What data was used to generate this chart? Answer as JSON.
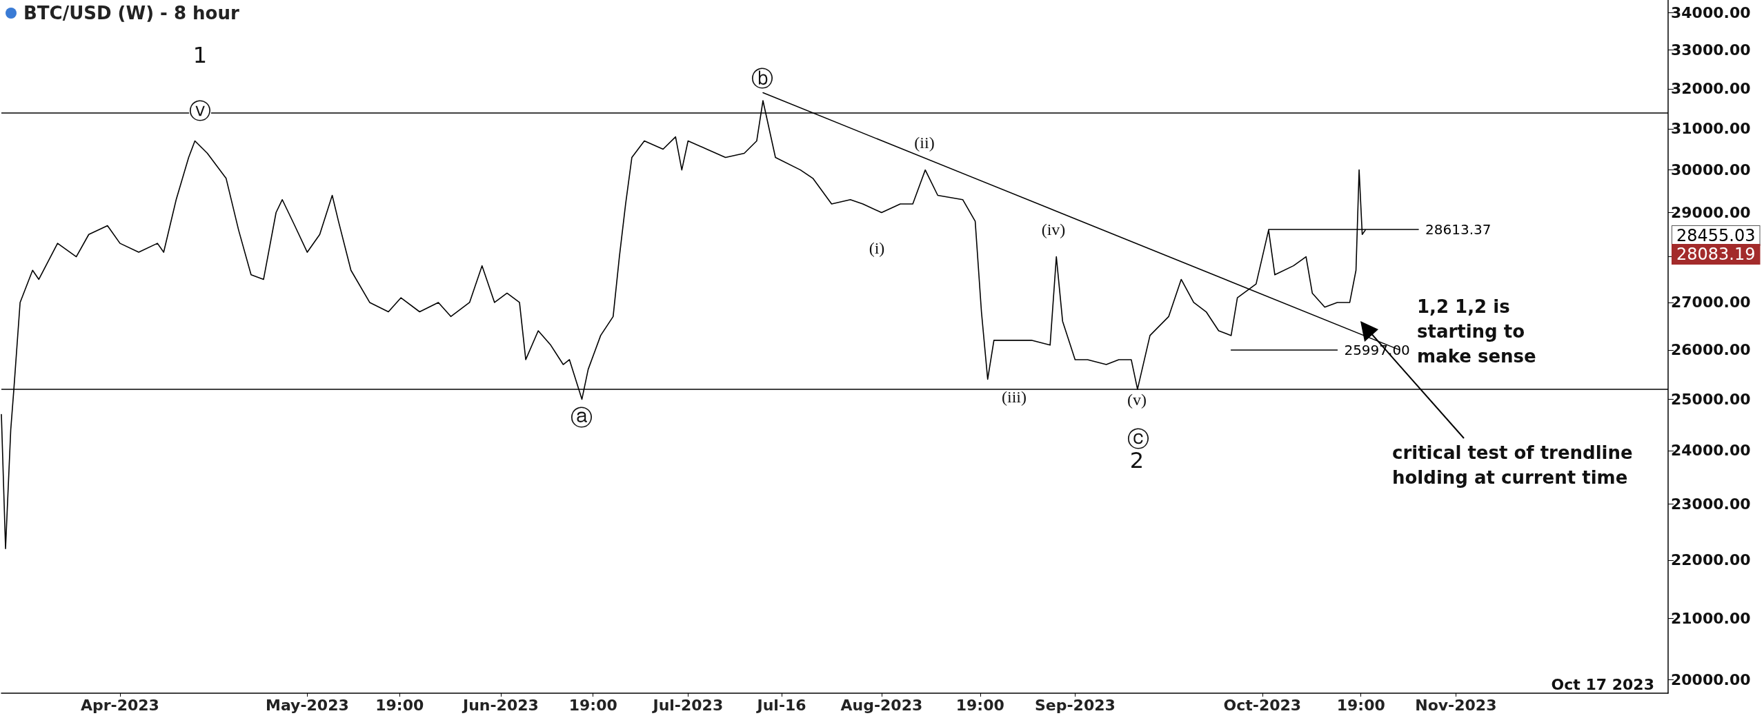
{
  "chart_data": {
    "type": "line",
    "title": "BTC/USD (W) - 8 hour",
    "log": "y",
    "grid": false,
    "marker": "none",
    "xlim": [
      "2023-03-13",
      "2023-12-05"
    ],
    "ylim": [
      19790,
      34340
    ],
    "xticks": [
      {
        "value": "2023-04-01",
        "label": "Apr-2023"
      },
      {
        "value": "2023-05-01",
        "label": "May-2023"
      },
      {
        "value": "2023-05-15T19:00",
        "label": "19:00"
      },
      {
        "value": "2023-06-01",
        "label": "Jun-2023"
      },
      {
        "value": "2023-06-15T19:00",
        "label": "19:00"
      },
      {
        "value": "2023-07-01",
        "label": "Jul-2023"
      },
      {
        "value": "2023-07-16",
        "label": "Jul-16"
      },
      {
        "value": "2023-08-01",
        "label": "Aug-2023"
      },
      {
        "value": "2023-08-16T19:00",
        "label": "19:00"
      },
      {
        "value": "2023-09-01",
        "label": "Sep-2023"
      },
      {
        "value": "2023-10-01",
        "label": "Oct-2023"
      },
      {
        "value": "2023-10-16T19:00",
        "label": "19:00"
      },
      {
        "value": "2023-11-01",
        "label": "Nov-2023"
      }
    ],
    "yticks": [
      {
        "value": 20000,
        "label": "20000.00"
      },
      {
        "value": 21000,
        "label": "21000.00"
      },
      {
        "value": 22000,
        "label": "22000.00"
      },
      {
        "value": 23000,
        "label": "23000.00"
      },
      {
        "value": 24000,
        "label": "24000.00"
      },
      {
        "value": 25000,
        "label": "25000.00"
      },
      {
        "value": 26000,
        "label": "26000.00"
      },
      {
        "value": 27000,
        "label": "27000.00"
      },
      {
        "value": 28000,
        "label": null
      },
      {
        "value": 29000,
        "label": "29000.00"
      },
      {
        "value": 30000,
        "label": "30000.00"
      },
      {
        "value": 31000,
        "label": "31000.00"
      },
      {
        "value": 32000,
        "label": "32000.00"
      },
      {
        "value": 33000,
        "label": "33000.00"
      },
      {
        "value": 34000,
        "label": "34000.00"
      }
    ],
    "ref_lines": [
      {
        "axis": "y",
        "value": 31400,
        "color": "#000000"
      },
      {
        "axis": "y",
        "value": 25200,
        "color": "#000000"
      }
    ],
    "series": [
      {
        "color": "#000000",
        "x": [
          "2023-03-13T00:00",
          "2023-03-13T16:00",
          "2023-03-14T12:00",
          "2023-03-15",
          "2023-03-16",
          "2023-03-18",
          "2023-03-19",
          "2023-03-22",
          "2023-03-25",
          "2023-03-27",
          "2023-03-30",
          "2023-04-01",
          "2023-04-04",
          "2023-04-07",
          "2023-04-08",
          "2023-04-10",
          "2023-04-12",
          "2023-04-13",
          "2023-04-15",
          "2023-04-18",
          "2023-04-20",
          "2023-04-22",
          "2023-04-24",
          "2023-04-26",
          "2023-04-27",
          "2023-04-29",
          "2023-05-01",
          "2023-05-03",
          "2023-05-05",
          "2023-05-06",
          "2023-05-08",
          "2023-05-11",
          "2023-05-14",
          "2023-05-16",
          "2023-05-19",
          "2023-05-22",
          "2023-05-24",
          "2023-05-27",
          "2023-05-29",
          "2023-05-31",
          "2023-06-02",
          "2023-06-04",
          "2023-06-05",
          "2023-06-07",
          "2023-06-09",
          "2023-06-11",
          "2023-06-12",
          "2023-06-14",
          "2023-06-15",
          "2023-06-17",
          "2023-06-19",
          "2023-06-20",
          "2023-06-21",
          "2023-06-22",
          "2023-06-24",
          "2023-06-27",
          "2023-06-29",
          "2023-06-30",
          "2023-07-01",
          "2023-07-04",
          "2023-07-07",
          "2023-07-10",
          "2023-07-12",
          "2023-07-13",
          "2023-07-15",
          "2023-07-19",
          "2023-07-21",
          "2023-07-24",
          "2023-07-27",
          "2023-07-29",
          "2023-08-01",
          "2023-08-04",
          "2023-08-06",
          "2023-08-08",
          "2023-08-10",
          "2023-08-14",
          "2023-08-16",
          "2023-08-17",
          "2023-08-18",
          "2023-08-19",
          "2023-08-22",
          "2023-08-25",
          "2023-08-28",
          "2023-08-29",
          "2023-08-30",
          "2023-09-01",
          "2023-09-03",
          "2023-09-06",
          "2023-09-08",
          "2023-09-10",
          "2023-09-11",
          "2023-09-13",
          "2023-09-16",
          "2023-09-18",
          "2023-09-20",
          "2023-09-22",
          "2023-09-24",
          "2023-09-26",
          "2023-09-27",
          "2023-09-30",
          "2023-10-02",
          "2023-10-03",
          "2023-10-06",
          "2023-10-08",
          "2023-10-09",
          "2023-10-11",
          "2023-10-13",
          "2023-10-15",
          "2023-10-16",
          "2023-10-16T12:00",
          "2023-10-17",
          "2023-10-17T12:00"
        ],
        "values": [
          24700,
          22200,
          24400,
          25200,
          27000,
          27700,
          27500,
          28300,
          28000,
          28500,
          28700,
          28300,
          28100,
          28300,
          28100,
          29300,
          30300,
          30700,
          30400,
          29800,
          28600,
          27600,
          27500,
          29000,
          29300,
          28700,
          28100,
          28500,
          29400,
          28800,
          27700,
          27000,
          26800,
          27100,
          26800,
          27000,
          26700,
          27000,
          27800,
          27000,
          27200,
          27000,
          25800,
          26400,
          26100,
          25700,
          25800,
          25000,
          25600,
          26300,
          26700,
          28000,
          29200,
          30300,
          30700,
          30500,
          30800,
          30000,
          30700,
          30500,
          30300,
          30400,
          30700,
          31700,
          30300,
          30000,
          29800,
          29200,
          29300,
          29200,
          29000,
          29200,
          29200,
          30000,
          29400,
          29300,
          28800,
          26800,
          25400,
          26200,
          26200,
          26200,
          26100,
          28000,
          26600,
          25800,
          25800,
          25700,
          25800,
          25800,
          25200,
          26300,
          26700,
          27500,
          27000,
          26800,
          26400,
          26300,
          27100,
          27400,
          28600,
          27600,
          27800,
          28000,
          27200,
          26900,
          27000,
          27000,
          27700,
          30000,
          28500,
          28600
        ]
      },
      {
        "color": "#000000",
        "x": [
          "2023-07-13",
          "2023-10-23"
        ],
        "values": [
          31900,
          26000
        ]
      },
      {
        "color": "#000000",
        "x": [
          "2023-10-02",
          "2023-10-26"
        ],
        "values": [
          28613.37,
          28613.37
        ],
        "value_labels": [
          null,
          "28613.37"
        ]
      },
      {
        "color": "#000000",
        "x": [
          "2023-09-26",
          "2023-10-13"
        ],
        "values": [
          25997,
          25997
        ],
        "value_labels": [
          null,
          "25997.00"
        ]
      }
    ],
    "annotations": [
      "1",
      "ⓥ",
      "ⓑ",
      "(ii)",
      "(i)",
      "(iv)",
      "(iii)",
      "ⓐ",
      "(v)",
      "ⓒ",
      "2",
      "1,2 1,2 is\nstarting to\nmake sense",
      "critical test of trendline\nholding at current time",
      "28455.03",
      "28083.19",
      "Oct 17 2023"
    ]
  }
}
